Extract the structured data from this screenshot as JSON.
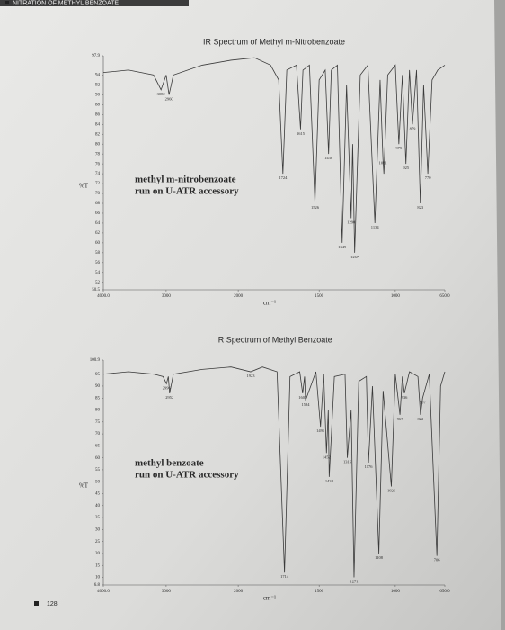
{
  "header": "NITRATION OF METHYL BENZOATE",
  "page_number": "128",
  "chart_data": [
    {
      "type": "line",
      "title": "IR Spectrum of Methyl m-Nitrobenzoate",
      "y_label": "%T",
      "x_label": "cm⁻¹",
      "note": [
        "methyl m-nitrobenzoate",
        "run on U-ATR accessory"
      ],
      "xlim": [
        4000,
        650
      ],
      "ylim": [
        50.5,
        97.9
      ],
      "xticks": [
        {
          "value": 4000,
          "label": "4000.0"
        },
        3000,
        2000,
        1500,
        1000,
        {
          "value": 650,
          "label": "650.0"
        }
      ],
      "yticks": [
        50.5,
        52,
        54,
        56,
        58,
        60,
        62,
        64,
        66,
        68,
        70,
        72,
        74,
        76,
        78,
        80,
        82,
        84,
        86,
        88,
        90,
        92,
        94,
        97.9
      ],
      "series": [
        {
          "color": "#3a3a3a",
          "x": [
            4000,
            3600,
            3200,
            3082,
            3000,
            2960,
            2900,
            2500,
            2100,
            1900,
            1800,
            1750,
            1724,
            1700,
            1640,
            1615,
            1600,
            1560,
            1526,
            1500,
            1460,
            1438,
            1420,
            1380,
            1349,
            1320,
            1290,
            1280,
            1267,
            1230,
            1180,
            1134,
            1100,
            1081,
            1075,
            1050,
            1000,
            975,
            950,
            925,
            900,
            879,
            850,
            823,
            800,
            770,
            740,
            700,
            650
          ],
          "values": [
            94.5,
            95,
            94,
            91,
            94,
            90,
            94,
            96,
            97,
            97.5,
            96,
            93,
            74,
            95,
            96,
            83,
            95,
            96,
            68,
            93,
            95,
            78,
            95,
            96,
            60,
            92,
            65,
            80,
            58,
            94,
            96,
            64,
            93,
            77,
            74,
            94,
            96,
            80,
            94,
            76,
            95,
            84,
            95,
            68,
            92,
            74,
            93,
            95,
            96
          ]
        }
      ],
      "annotations": [
        {
          "text": "3082",
          "x": 3082,
          "y": 91
        },
        {
          "text": "2960",
          "x": 2960,
          "y": 90
        },
        {
          "text": "1724",
          "x": 1724,
          "y": 74
        },
        {
          "text": "1615",
          "x": 1615,
          "y": 83
        },
        {
          "text": "1526",
          "x": 1526,
          "y": 68
        },
        {
          "text": "1438",
          "x": 1438,
          "y": 78
        },
        {
          "text": "1349",
          "x": 1349,
          "y": 60
        },
        {
          "text": "1290",
          "x": 1290,
          "y": 65
        },
        {
          "text": "1267",
          "x": 1267,
          "y": 58
        },
        {
          "text": "1134",
          "x": 1134,
          "y": 64
        },
        {
          "text": "1081",
          "x": 1081,
          "y": 77
        },
        {
          "text": "975",
          "x": 975,
          "y": 80
        },
        {
          "text": "925",
          "x": 925,
          "y": 76
        },
        {
          "text": "879",
          "x": 879,
          "y": 84
        },
        {
          "text": "823",
          "x": 823,
          "y": 68
        },
        {
          "text": "770",
          "x": 770,
          "y": 74
        }
      ]
    },
    {
      "type": "line",
      "title": "IR Spectrum of Methyl Benzoate",
      "y_label": "%T",
      "x_label": "cm⁻¹",
      "note": [
        "methyl benzoate",
        "run on U-ATR accessory"
      ],
      "xlim": [
        4000,
        650
      ],
      "ylim": [
        6.8,
        100.9
      ],
      "xticks": [
        {
          "value": 4000,
          "label": "4000.0"
        },
        3000,
        2000,
        1500,
        1000,
        {
          "value": 650,
          "label": "650.0"
        }
      ],
      "yticks": [
        6.8,
        10,
        15,
        20,
        25,
        30,
        35,
        40,
        45,
        50,
        55,
        60,
        65,
        70,
        75,
        80,
        85,
        90,
        95,
        100.9
      ],
      "series": [
        {
          "color": "#3a3a3a",
          "x": [
            4000,
            3600,
            3200,
            3050,
            2996,
            2970,
            2952,
            2900,
            2500,
            2100,
            1923,
            1850,
            1760,
            1714,
            1680,
            1620,
            1602,
            1590,
            1584,
            1520,
            1491,
            1470,
            1452,
            1440,
            1434,
            1400,
            1330,
            1315,
            1290,
            1271,
            1240,
            1190,
            1176,
            1150,
            1108,
            1080,
            1026,
            1000,
            967,
            950,
            936,
            900,
            840,
            822,
            807,
            760,
            706,
            680,
            650
          ],
          "values": [
            95,
            96,
            95,
            94,
            91,
            94,
            87,
            95,
            97,
            98,
            96,
            98,
            96,
            12,
            94,
            96,
            87,
            94,
            84,
            96,
            73,
            95,
            62,
            80,
            52,
            94,
            95,
            60,
            80,
            10,
            92,
            94,
            58,
            90,
            20,
            88,
            48,
            95,
            78,
            94,
            87,
            96,
            94,
            78,
            85,
            95,
            19,
            90,
            96
          ]
        }
      ],
      "annotations": [
        {
          "text": "2996",
          "x": 2996,
          "y": 91
        },
        {
          "text": "2952",
          "x": 2952,
          "y": 87
        },
        {
          "text": "1923",
          "x": 1923,
          "y": 96
        },
        {
          "text": "1714",
          "x": 1714,
          "y": 12
        },
        {
          "text": "1602",
          "x": 1602,
          "y": 87
        },
        {
          "text": "1584",
          "x": 1584,
          "y": 84
        },
        {
          "text": "1491",
          "x": 1491,
          "y": 73
        },
        {
          "text": "1452",
          "x": 1452,
          "y": 62
        },
        {
          "text": "1434",
          "x": 1434,
          "y": 52
        },
        {
          "text": "1315",
          "x": 1315,
          "y": 60
        },
        {
          "text": "1271",
          "x": 1271,
          "y": 10
        },
        {
          "text": "1176",
          "x": 1176,
          "y": 58
        },
        {
          "text": "1108",
          "x": 1108,
          "y": 20
        },
        {
          "text": "1026",
          "x": 1026,
          "y": 48
        },
        {
          "text": "967",
          "x": 967,
          "y": 78
        },
        {
          "text": "936",
          "x": 936,
          "y": 87
        },
        {
          "text": "822",
          "x": 822,
          "y": 78
        },
        {
          "text": "807",
          "x": 807,
          "y": 85
        },
        {
          "text": "706",
          "x": 706,
          "y": 19
        }
      ]
    }
  ]
}
